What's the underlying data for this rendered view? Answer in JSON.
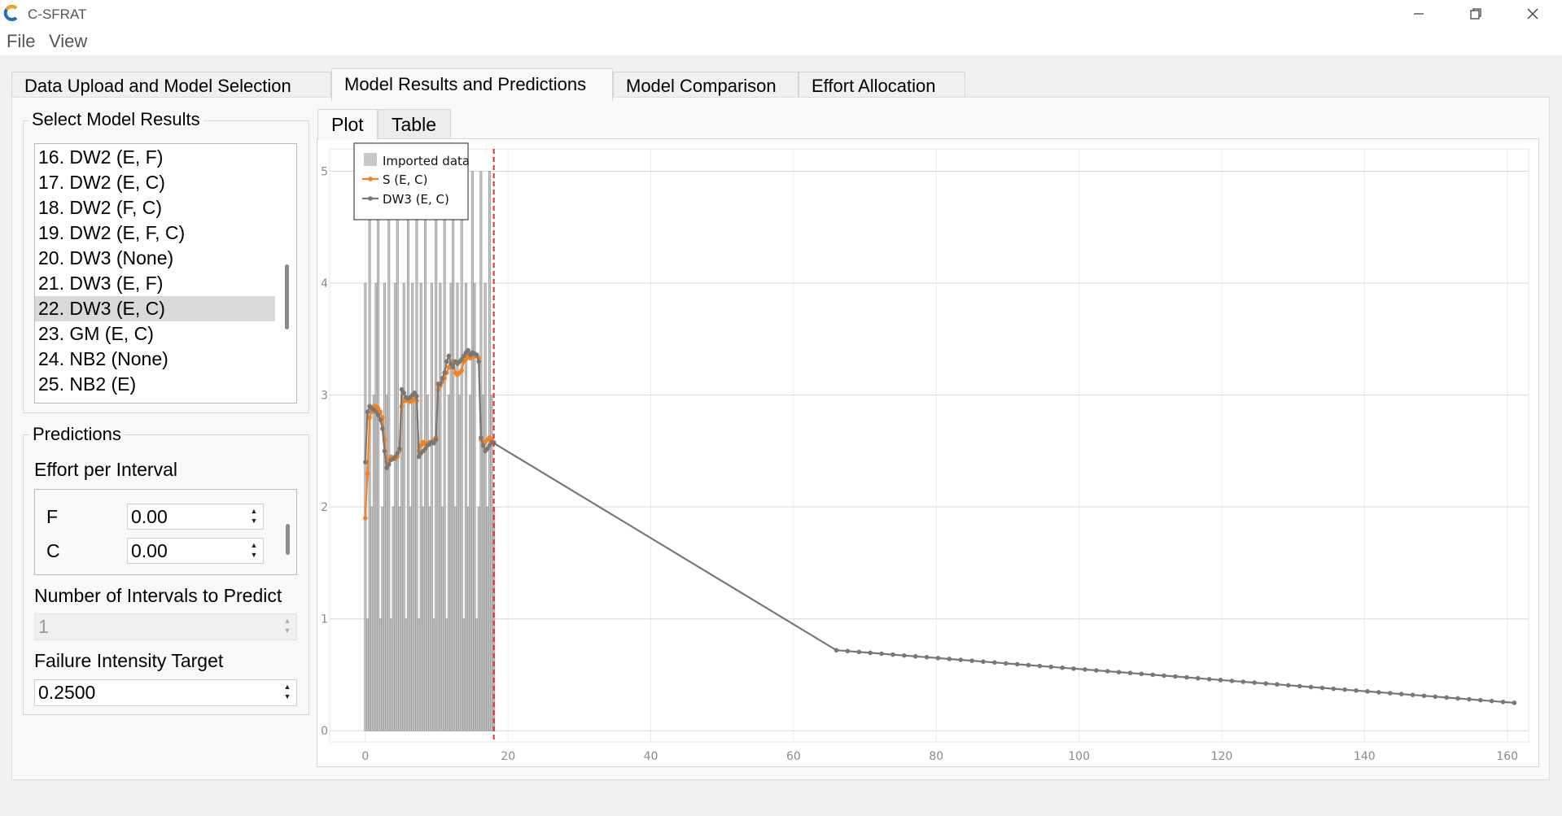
{
  "window": {
    "title": "C-SFRAT"
  },
  "menu": {
    "file": "File",
    "view": "View"
  },
  "main_tabs": [
    {
      "label": "Data Upload and Model Selection"
    },
    {
      "label": "Model Results and Predictions"
    },
    {
      "label": "Model Comparison"
    },
    {
      "label": "Effort Allocation"
    }
  ],
  "model_results": {
    "title": "Select Model Results",
    "items": [
      "16. DW2 (E, F)",
      "17. DW2 (E, C)",
      "18. DW2 (F, C)",
      "19. DW2 (E, F, C)",
      "20. DW3 (None)",
      "21. DW3 (E, F)",
      "22. DW3 (E, C)",
      "23. GM (E, C)",
      "24. NB2 (None)",
      "25. NB2 (E)"
    ],
    "selected": "22. DW3 (E, C)"
  },
  "predictions": {
    "title": "Predictions",
    "effort_label": "Effort per Interval",
    "effort_rows": [
      {
        "name": "F",
        "value": "0.00"
      },
      {
        "name": "C",
        "value": "0.00"
      }
    ],
    "intervals_label": "Number of Intervals to Predict",
    "intervals_value": "1",
    "intensity_label": "Failure Intensity Target",
    "intensity_value": "0.2500"
  },
  "plot_tabs": [
    {
      "label": "Plot"
    },
    {
      "label": "Table"
    }
  ],
  "chart_data": {
    "type": "bar+line",
    "title": "",
    "xlabel": "",
    "ylabel": "",
    "xlim": [
      -5,
      163
    ],
    "ylim": [
      -0.1,
      5.2
    ],
    "xticks": [
      0,
      20,
      40,
      60,
      80,
      100,
      120,
      140,
      160
    ],
    "yticks": [
      0,
      1,
      2,
      3,
      4,
      5
    ],
    "grid": true,
    "legend_position": "top-left",
    "vline": {
      "x": 18,
      "color": "#e03030"
    },
    "bars": {
      "name": "Imported data",
      "color": "#c8c8c8",
      "x": [
        0,
        0.3,
        0.6,
        0.9,
        1.2,
        1.5,
        1.8,
        2.1,
        2.4,
        2.7,
        3.0,
        3.3,
        3.6,
        3.9,
        4.2,
        4.5,
        4.8,
        5.1,
        5.4,
        5.7,
        6.0,
        6.3,
        6.6,
        6.9,
        7.2,
        7.5,
        7.8,
        8.1,
        8.4,
        8.7,
        9.0,
        9.3,
        9.6,
        9.9,
        10.2,
        10.5,
        10.8,
        11.1,
        11.4,
        11.7,
        12.0,
        12.3,
        12.6,
        12.9,
        13.2,
        13.5,
        13.8,
        14.1,
        14.4,
        14.7,
        15.0,
        15.3,
        15.6,
        15.9,
        16.2,
        16.5,
        16.8,
        17.1,
        17.4,
        17.7,
        18.0
      ],
      "values": [
        4,
        1,
        5,
        2,
        3,
        4,
        5,
        1,
        2,
        4,
        3,
        5,
        1,
        2,
        4,
        5,
        2,
        3,
        4,
        1,
        5,
        2,
        4,
        3,
        5,
        1,
        4,
        2,
        5,
        3,
        2,
        4,
        1,
        5,
        3,
        4,
        2,
        5,
        1,
        3,
        4,
        5,
        2,
        4,
        3,
        5,
        1,
        4,
        2,
        3,
        5,
        4,
        1,
        2,
        5,
        3,
        4,
        2,
        5,
        3,
        2
      ]
    },
    "series": [
      {
        "name": "S (E, C)",
        "color": "#f5821f",
        "x": [
          0,
          0.3,
          0.6,
          0.9,
          1.2,
          1.5,
          1.8,
          2.1,
          2.4,
          2.7,
          3.0,
          3.3,
          3.6,
          3.9,
          4.2,
          4.5,
          4.8,
          5.1,
          5.4,
          5.7,
          6.0,
          6.3,
          6.6,
          6.9,
          7.2,
          7.5,
          7.8,
          8.1,
          8.4,
          8.7,
          9.0,
          9.3,
          9.6,
          9.9,
          10.2,
          10.5,
          10.8,
          11.1,
          11.4,
          11.7,
          12.0,
          12.3,
          12.6,
          12.9,
          13.2,
          13.5,
          13.8,
          14.1,
          14.4,
          14.7,
          15.0,
          15.3,
          15.6,
          15.9,
          16.2,
          16.5,
          16.8,
          17.1,
          17.4,
          17.7,
          18.0
        ],
        "values": [
          1.9,
          2.3,
          2.8,
          2.85,
          2.9,
          2.9,
          2.88,
          2.85,
          2.8,
          2.6,
          2.4,
          2.42,
          2.45,
          2.44,
          2.43,
          2.45,
          2.5,
          2.9,
          2.95,
          2.95,
          2.95,
          2.94,
          2.95,
          2.96,
          2.95,
          2.5,
          2.55,
          2.58,
          2.56,
          2.57,
          2.58,
          2.58,
          2.6,
          2.62,
          3.05,
          3.08,
          3.12,
          3.15,
          3.2,
          3.25,
          3.25,
          3.3,
          3.2,
          3.18,
          3.2,
          3.22,
          3.3,
          3.32,
          3.35,
          3.33,
          3.34,
          3.35,
          3.35,
          3.33,
          2.6,
          2.58,
          2.58,
          2.6,
          2.62,
          2.6,
          2.58
        ]
      },
      {
        "name": "DW3 (E, C)",
        "color": "#787878",
        "x": [
          0,
          0.3,
          0.6,
          0.9,
          1.2,
          1.5,
          1.8,
          2.1,
          2.4,
          2.7,
          3.0,
          3.3,
          3.6,
          3.9,
          4.2,
          4.5,
          4.8,
          5.1,
          5.4,
          5.7,
          6.0,
          6.3,
          6.6,
          6.9,
          7.2,
          7.5,
          7.8,
          8.1,
          8.4,
          8.7,
          9.0,
          9.3,
          9.6,
          9.9,
          10.2,
          10.5,
          10.8,
          11.1,
          11.4,
          11.7,
          12.0,
          12.3,
          12.6,
          12.9,
          13.2,
          13.5,
          13.8,
          14.1,
          14.4,
          14.7,
          15.0,
          15.3,
          15.6,
          15.9,
          16.2,
          16.5,
          16.8,
          17.1,
          17.4,
          17.7,
          18.0
        ],
        "values": [
          2.4,
          2.85,
          2.9,
          2.88,
          2.87,
          2.85,
          2.82,
          2.78,
          2.7,
          2.5,
          2.35,
          2.38,
          2.42,
          2.43,
          2.45,
          2.48,
          2.52,
          3.05,
          3.02,
          2.98,
          2.97,
          2.98,
          3.0,
          3.02,
          2.99,
          2.45,
          2.48,
          2.5,
          2.52,
          2.55,
          2.56,
          2.58,
          2.57,
          2.6,
          3.1,
          3.1,
          3.15,
          3.2,
          3.3,
          3.35,
          3.28,
          3.25,
          3.3,
          3.28,
          3.3,
          3.32,
          3.35,
          3.38,
          3.4,
          3.36,
          3.38,
          3.37,
          3.36,
          3.3,
          2.62,
          2.55,
          2.5,
          2.52,
          2.55,
          2.58,
          2.57
        ]
      },
      {
        "name": "DW3 (E, C) prediction",
        "color": "#787878",
        "x": [
          18,
          66,
          161
        ],
        "values": [
          2.57,
          0.72,
          0.25
        ]
      }
    ]
  }
}
